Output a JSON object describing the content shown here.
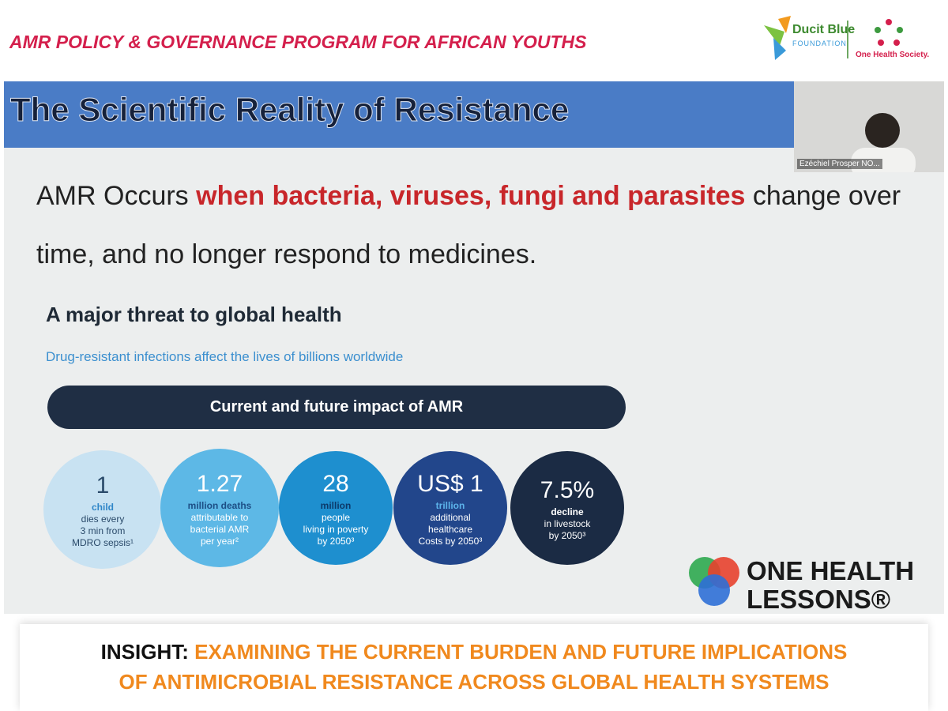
{
  "header": {
    "title": "AMR POLICY & GOVERNANCE PROGRAM FOR AFRICAN YOUTHS",
    "logo_left": {
      "name": "Ducit Blue",
      "tagline": "FOUNDATION"
    },
    "logo_right": {
      "name": "One Health Society."
    }
  },
  "slide": {
    "title": "The Scientific Reality of  Resistance",
    "webcam_name": "Ezéchiel Prosper NO...",
    "statement": {
      "lead": "AMR Occurs ",
      "highlight": "when bacteria, viruses, fungi and parasites",
      "line1_tail": " change over",
      "line2": "time, and no longer respond to medicines."
    },
    "subheading": "A major threat to global health",
    "subtext": "Drug-resistant infections affect the lives of billions worldwide",
    "banner": "Current and future impact of AMR",
    "circles": [
      {
        "figure": "1",
        "lead": "child",
        "lines": [
          "dies every",
          "3 min from",
          "MDRO sepsis¹"
        ]
      },
      {
        "figure": "1.27",
        "lead": "million deaths",
        "lines": [
          "attributable to",
          "bacterial AMR",
          "per year²"
        ]
      },
      {
        "figure": "28",
        "lead": "million",
        "lines": [
          "people",
          "living in poverty",
          "by 2050³"
        ]
      },
      {
        "figure": "US$ 1",
        "lead": "trillion",
        "lines": [
          "additional",
          "healthcare",
          "Costs by 2050³"
        ]
      },
      {
        "figure": "7.5%",
        "lead": "decline",
        "lines": [
          "in livestock",
          "by 2050³"
        ]
      }
    ],
    "brand": {
      "line1": "ONE HEALTH",
      "line2": "LESSONS®"
    }
  },
  "footer": {
    "label": "INSIGHT:",
    "lines": [
      "EXAMINING THE CURRENT BURDEN AND FUTURE IMPLICATIONS",
      "OF ANTIMICROBIAL RESISTANCE ACROSS GLOBAL HEALTH SYSTEMS"
    ]
  }
}
